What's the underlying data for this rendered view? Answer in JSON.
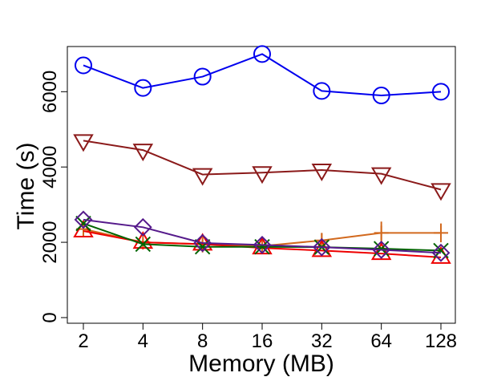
{
  "chart_data": {
    "type": "line",
    "title": "",
    "xlabel": "Memory (MB)",
    "ylabel": "Time (s)",
    "categories": [
      "2",
      "4",
      "8",
      "16",
      "32",
      "64",
      "128"
    ],
    "y_ticks": [
      0,
      2000,
      4000,
      6000
    ],
    "ylim": [
      -150,
      7200
    ],
    "grid": false,
    "legend": "none",
    "series": [
      {
        "name": "series-circle",
        "color": "#0000ee",
        "marker": "circle",
        "values": [
          6700,
          6100,
          6400,
          7000,
          6020,
          5900,
          6000
        ]
      },
      {
        "name": "series-triangle-down",
        "color": "#8b1a1a",
        "marker": "triangle-down",
        "values": [
          4700,
          4450,
          3800,
          3850,
          3920,
          3820,
          3400
        ]
      },
      {
        "name": "series-plus",
        "color": "#d2691e",
        "marker": "plus",
        "values": [
          2350,
          2000,
          1950,
          1900,
          2050,
          2250,
          2250
        ],
        "errors": [
          80,
          100,
          220,
          150,
          200,
          300,
          250
        ]
      },
      {
        "name": "series-triangle-up",
        "color": "#ee0000",
        "marker": "triangle-up",
        "values": [
          2300,
          2000,
          1950,
          1850,
          1780,
          1700,
          1600
        ]
      },
      {
        "name": "series-cross",
        "color": "#006400",
        "marker": "cross",
        "values": [
          2500,
          1950,
          1880,
          1880,
          1870,
          1830,
          1780
        ]
      },
      {
        "name": "series-diamond",
        "color": "#551a8b",
        "marker": "diamond",
        "values": [
          2600,
          2400,
          1980,
          1930,
          1870,
          1800,
          1720
        ]
      }
    ]
  }
}
